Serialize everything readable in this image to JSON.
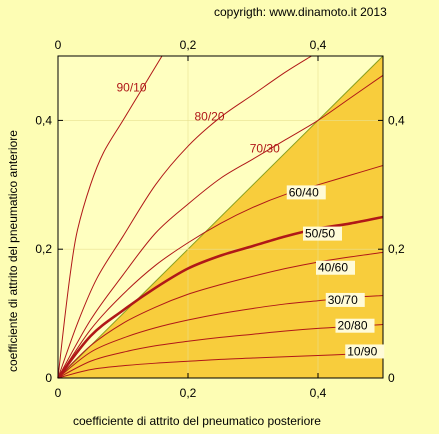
{
  "copyright": "copyrigth: www.dinamoto.it  2013",
  "chart_data": {
    "type": "line",
    "xlabel": "coefficiente di attrito del pneumatico posteriore",
    "ylabel": "coefficiente di attrito del pneumatico anteriore",
    "xlim": [
      0,
      0.5
    ],
    "ylim": [
      0,
      0.5
    ],
    "bottom_ticks": [
      "0",
      "0,2",
      "0,4"
    ],
    "top_ticks": [
      "0",
      "0,2",
      "0,4"
    ],
    "left_ticks": [
      "0",
      "0,2",
      "0,4"
    ],
    "right_ticks": [
      "0",
      "0,2",
      "0,4"
    ],
    "tick_values": [
      0,
      0.2,
      0.4
    ],
    "colors": {
      "background": "#fdfdb4",
      "plot_area": "#ffffc0",
      "shaded_region": "#f8cd3c",
      "diagonal": "#8aa020",
      "curves": "#b01818",
      "label_box": "#fffbd8"
    },
    "shaded_region": "below diagonal y = x",
    "series": [
      {
        "name": "90/10",
        "highlight": false,
        "label_color": "#b01818",
        "boxed": false,
        "label_at": [
          0.09,
          0.445
        ],
        "points": [
          [
            0,
            0
          ],
          [
            0.01,
            0.09
          ],
          [
            0.02,
            0.17
          ],
          [
            0.03,
            0.23
          ],
          [
            0.05,
            0.3
          ],
          [
            0.07,
            0.35
          ],
          [
            0.1,
            0.4
          ],
          [
            0.13,
            0.45
          ],
          [
            0.16,
            0.5
          ]
        ]
      },
      {
        "name": "80/20",
        "highlight": false,
        "label_color": "#b01818",
        "boxed": false,
        "label_at": [
          0.21,
          0.4
        ],
        "points": [
          [
            0,
            0
          ],
          [
            0.03,
            0.085
          ],
          [
            0.06,
            0.155
          ],
          [
            0.1,
            0.22
          ],
          [
            0.15,
            0.3
          ],
          [
            0.2,
            0.36
          ],
          [
            0.25,
            0.405
          ],
          [
            0.3,
            0.44
          ],
          [
            0.35,
            0.475
          ],
          [
            0.39,
            0.5
          ]
        ]
      },
      {
        "name": "70/30",
        "highlight": false,
        "label_color": "#b01818",
        "boxed": false,
        "label_at": [
          0.295,
          0.35
        ],
        "points": [
          [
            0,
            0
          ],
          [
            0.05,
            0.09
          ],
          [
            0.1,
            0.16
          ],
          [
            0.15,
            0.225
          ],
          [
            0.2,
            0.27
          ],
          [
            0.25,
            0.31
          ],
          [
            0.3,
            0.34
          ],
          [
            0.35,
            0.37
          ],
          [
            0.4,
            0.4
          ],
          [
            0.45,
            0.435
          ],
          [
            0.5,
            0.47
          ]
        ]
      },
      {
        "name": "60/40",
        "highlight": false,
        "label_color": "#000000",
        "boxed": true,
        "label_at": [
          0.355,
          0.282
        ],
        "points": [
          [
            0,
            0
          ],
          [
            0.05,
            0.075
          ],
          [
            0.1,
            0.13
          ],
          [
            0.15,
            0.175
          ],
          [
            0.2,
            0.21
          ],
          [
            0.25,
            0.24
          ],
          [
            0.3,
            0.265
          ],
          [
            0.35,
            0.285
          ],
          [
            0.4,
            0.3
          ],
          [
            0.45,
            0.315
          ],
          [
            0.5,
            0.33
          ]
        ]
      },
      {
        "name": "50/50",
        "highlight": true,
        "label_color": "#000000",
        "boxed": true,
        "label_at": [
          0.38,
          0.218
        ],
        "points": [
          [
            0,
            0
          ],
          [
            0.05,
            0.065
          ],
          [
            0.1,
            0.105
          ],
          [
            0.15,
            0.14
          ],
          [
            0.2,
            0.17
          ],
          [
            0.25,
            0.19
          ],
          [
            0.3,
            0.205
          ],
          [
            0.35,
            0.22
          ],
          [
            0.4,
            0.232
          ],
          [
            0.45,
            0.24
          ],
          [
            0.5,
            0.25
          ]
        ]
      },
      {
        "name": "40/60",
        "highlight": false,
        "label_color": "#000000",
        "boxed": true,
        "label_at": [
          0.4,
          0.165
        ],
        "points": [
          [
            0,
            0
          ],
          [
            0.05,
            0.05
          ],
          [
            0.1,
            0.085
          ],
          [
            0.15,
            0.11
          ],
          [
            0.2,
            0.13
          ],
          [
            0.25,
            0.145
          ],
          [
            0.3,
            0.158
          ],
          [
            0.35,
            0.17
          ],
          [
            0.4,
            0.18
          ],
          [
            0.45,
            0.188
          ],
          [
            0.5,
            0.195
          ]
        ]
      },
      {
        "name": "30/70",
        "highlight": false,
        "label_color": "#000000",
        "boxed": true,
        "label_at": [
          0.415,
          0.115
        ],
        "points": [
          [
            0,
            0
          ],
          [
            0.05,
            0.04
          ],
          [
            0.1,
            0.062
          ],
          [
            0.15,
            0.078
          ],
          [
            0.2,
            0.09
          ],
          [
            0.25,
            0.1
          ],
          [
            0.3,
            0.108
          ],
          [
            0.35,
            0.115
          ],
          [
            0.4,
            0.12
          ],
          [
            0.45,
            0.125
          ],
          [
            0.5,
            0.128
          ]
        ]
      },
      {
        "name": "20/80",
        "highlight": false,
        "label_color": "#000000",
        "boxed": true,
        "label_at": [
          0.43,
          0.075
        ],
        "points": [
          [
            0,
            0
          ],
          [
            0.05,
            0.026
          ],
          [
            0.1,
            0.04
          ],
          [
            0.15,
            0.05
          ],
          [
            0.2,
            0.057
          ],
          [
            0.25,
            0.063
          ],
          [
            0.3,
            0.068
          ],
          [
            0.35,
            0.073
          ],
          [
            0.4,
            0.077
          ],
          [
            0.45,
            0.08
          ],
          [
            0.5,
            0.083
          ]
        ]
      },
      {
        "name": "10/90",
        "highlight": false,
        "label_color": "#000000",
        "boxed": true,
        "label_at": [
          0.445,
          0.035
        ],
        "points": [
          [
            0,
            0
          ],
          [
            0.05,
            0.013
          ],
          [
            0.1,
            0.019
          ],
          [
            0.15,
            0.023
          ],
          [
            0.2,
            0.026
          ],
          [
            0.25,
            0.029
          ],
          [
            0.3,
            0.031
          ],
          [
            0.35,
            0.033
          ],
          [
            0.4,
            0.035
          ],
          [
            0.45,
            0.037
          ],
          [
            0.5,
            0.039
          ]
        ]
      }
    ]
  }
}
